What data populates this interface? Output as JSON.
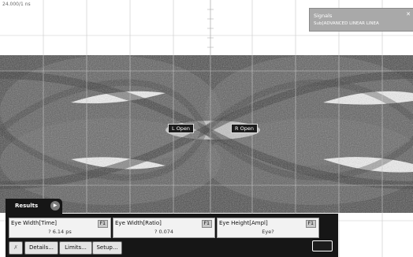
{
  "display": {
    "time_label": "24.000/1 ns"
  },
  "signals_box": {
    "title": "Signals",
    "subtitle": "Sub[ADVANCED LINEAR LINEA",
    "close_icon": "x-icon"
  },
  "cursors": {
    "left": "L Open",
    "right": "R Open"
  },
  "results": {
    "title": "Results",
    "play_icon": "play-icon",
    "measurements": [
      {
        "name": "Eye Width[Time]",
        "badge": "F1",
        "value": "? 6.14 ps"
      },
      {
        "name": "Eye Width[Ratio]",
        "badge": "F1",
        "value": "? 0.074"
      },
      {
        "name": "Eye Height[Ampl]",
        "badge": "F1",
        "value": "Eye?"
      }
    ],
    "buttons": {
      "delete_icon": "delete-icon",
      "details": "Details...",
      "limits": "Limits...",
      "setup": "Setup..."
    }
  },
  "colors": {
    "eye_dark": "#3a3a3a",
    "eye_mid": "#9a9a9a",
    "panel_bg": "#161616",
    "signals_bg": "#a9a9a9"
  }
}
